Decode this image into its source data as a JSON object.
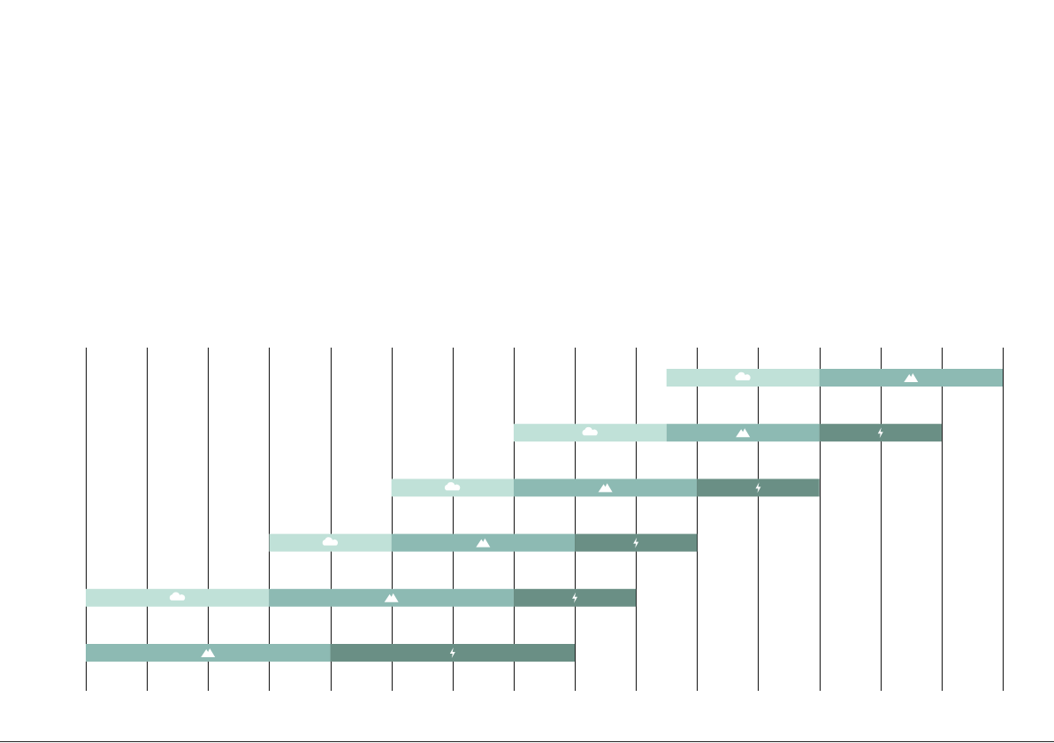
{
  "chart_data": {
    "type": "gantt",
    "xlim": [
      0,
      15
    ],
    "xticks": [
      0,
      1,
      2,
      3,
      4,
      5,
      6,
      7,
      8,
      9,
      10,
      11,
      12,
      13,
      14,
      15
    ],
    "grid": true,
    "series": [
      {
        "name": null,
        "icon": "cloud",
        "color": "#c0e1d8",
        "values": [
          [
            9.5,
            12
          ],
          [
            7,
            9.5
          ],
          [
            5,
            7
          ],
          [
            3,
            5
          ],
          [
            0,
            3
          ],
          null
        ]
      },
      {
        "name": null,
        "icon": "mountain",
        "color": "#8dbab3",
        "values": [
          [
            12,
            15
          ],
          [
            9.5,
            12
          ],
          [
            7,
            10
          ],
          [
            5,
            8
          ],
          [
            3,
            7
          ],
          [
            0,
            4
          ]
        ]
      },
      {
        "name": null,
        "icon": "bolt",
        "color": "#6a8f85",
        "values": [
          null,
          [
            12,
            14
          ],
          [
            10,
            12
          ],
          [
            8,
            10
          ],
          [
            7,
            9
          ],
          [
            4,
            8
          ]
        ]
      }
    ]
  }
}
